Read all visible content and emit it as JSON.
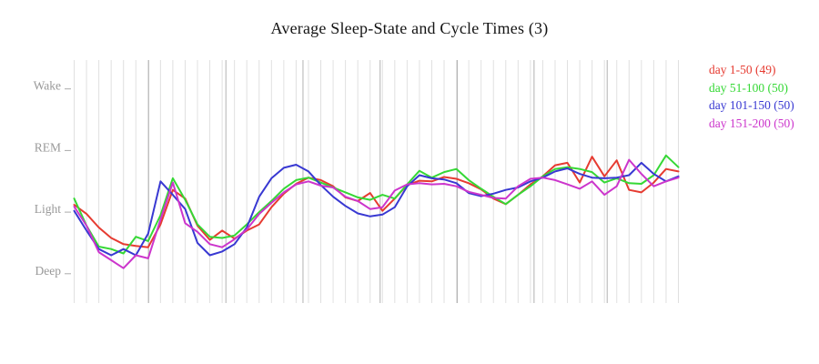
{
  "colors": {
    "background": "#ffffff",
    "gridline_minor": "#e0e0e0",
    "gridline_major": "#b2b2b2",
    "tick": "#aaaaaa",
    "axis_label_text": "#999999",
    "title_text": "#141414"
  },
  "chart_data": {
    "type": "line",
    "title": "Average Sleep-State and Cycle Times (3)",
    "legend_position": "right",
    "grid": "vertical-per-point",
    "y_axis": {
      "ticks": [
        {
          "label": "Wake",
          "value": 3
        },
        {
          "label": "REM",
          "value": 2
        },
        {
          "label": "Light",
          "value": 1
        },
        {
          "label": "Deep",
          "value": 0
        }
      ],
      "range": [
        -0.48,
        3.47
      ]
    },
    "x_axis": {
      "points_per_series": 50,
      "tick_labels": []
    },
    "cycle_boundaries_frac": [
      0.1232,
      0.2511,
      0.3787,
      0.5064,
      0.6341,
      0.7611,
      0.8821
    ],
    "series": [
      {
        "name": "day 1-50 (49)",
        "color": "#e63b31",
        "values": [
          1.12,
          0.97,
          0.75,
          0.58,
          0.48,
          0.45,
          0.43,
          0.8,
          1.36,
          1.22,
          0.78,
          0.55,
          0.7,
          0.57,
          0.7,
          0.8,
          1.08,
          1.3,
          1.46,
          1.56,
          1.52,
          1.42,
          1.24,
          1.18,
          1.31,
          1.02,
          1.22,
          1.44,
          1.51,
          1.5,
          1.57,
          1.54,
          1.47,
          1.37,
          1.22,
          1.13,
          1.28,
          1.45,
          1.58,
          1.76,
          1.8,
          1.48,
          1.9,
          1.58,
          1.84,
          1.36,
          1.32,
          1.48,
          1.7,
          1.66
        ]
      },
      {
        "name": "day 51-100 (50)",
        "color": "#35d835",
        "values": [
          1.22,
          0.78,
          0.44,
          0.4,
          0.33,
          0.6,
          0.53,
          0.95,
          1.55,
          1.2,
          0.8,
          0.6,
          0.58,
          0.62,
          0.8,
          1.0,
          1.18,
          1.38,
          1.52,
          1.56,
          1.48,
          1.4,
          1.32,
          1.24,
          1.2,
          1.28,
          1.22,
          1.45,
          1.67,
          1.56,
          1.65,
          1.7,
          1.52,
          1.38,
          1.25,
          1.13,
          1.28,
          1.42,
          1.58,
          1.7,
          1.73,
          1.7,
          1.65,
          1.48,
          1.55,
          1.47,
          1.46,
          1.6,
          1.92,
          1.73
        ]
      },
      {
        "name": "day 101-150 (50)",
        "color": "#3838d2",
        "values": [
          1.02,
          0.7,
          0.4,
          0.3,
          0.4,
          0.3,
          0.65,
          1.5,
          1.28,
          1.05,
          0.5,
          0.3,
          0.36,
          0.48,
          0.75,
          1.25,
          1.55,
          1.72,
          1.77,
          1.66,
          1.44,
          1.25,
          1.1,
          0.98,
          0.93,
          0.96,
          1.08,
          1.42,
          1.6,
          1.55,
          1.53,
          1.47,
          1.31,
          1.26,
          1.3,
          1.36,
          1.4,
          1.5,
          1.56,
          1.66,
          1.71,
          1.62,
          1.56,
          1.55,
          1.56,
          1.6,
          1.8,
          1.62,
          1.5,
          1.58
        ]
      },
      {
        "name": "day 151-200 (50)",
        "color": "#cc35cc",
        "values": [
          1.09,
          0.78,
          0.35,
          0.22,
          0.09,
          0.3,
          0.25,
          0.88,
          1.48,
          0.82,
          0.68,
          0.48,
          0.43,
          0.56,
          0.72,
          0.97,
          1.15,
          1.32,
          1.45,
          1.5,
          1.43,
          1.4,
          1.25,
          1.18,
          1.05,
          1.08,
          1.35,
          1.45,
          1.47,
          1.45,
          1.46,
          1.42,
          1.33,
          1.28,
          1.23,
          1.22,
          1.42,
          1.54,
          1.56,
          1.52,
          1.45,
          1.38,
          1.5,
          1.28,
          1.42,
          1.85,
          1.62,
          1.42,
          1.5,
          1.56
        ]
      }
    ]
  }
}
